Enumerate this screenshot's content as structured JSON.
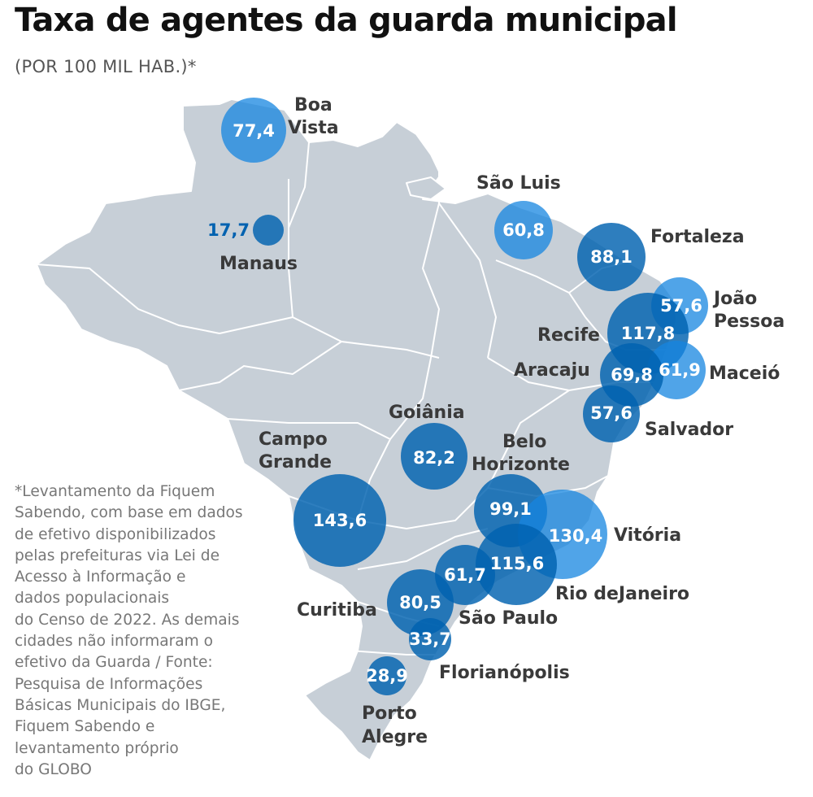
{
  "title": "Taxa de agentes da guarda municipal",
  "subtitle": "(POR 100 MIL HAB.)*",
  "note_lines": [
    "*Levantamento da Fiquem",
    "Sabendo, com base em dados",
    "de efetivo disponibilizados",
    "pelas prefeituras via Lei de",
    "Acesso à Informação e",
    "dados populacionais",
    "do Censo de 2022. As demais",
    "cidades não informaram o",
    "efetivo da Guarda / Fonte:",
    "Pesquisa de Informações",
    "Básicas Municipais do IBGE,",
    "Fiquem Sabendo e",
    "levantamento próprio",
    "do GLOBO"
  ],
  "colors": {
    "bubble": "#0062b0",
    "bubble_highlight": "#1686e0",
    "land": "#c7cfd7",
    "border": "#ffffff",
    "label": "#3a3a3a"
  },
  "cities": [
    {
      "id": "boa-vista",
      "name_lines": [
        "Boa",
        "Vista"
      ],
      "value": "77,4"
    },
    {
      "id": "manaus",
      "name_lines": [
        "Manaus"
      ],
      "value": "17,7"
    },
    {
      "id": "sao-luis",
      "name_lines": [
        "São Luis"
      ],
      "value": "60,8"
    },
    {
      "id": "fortaleza",
      "name_lines": [
        "Fortaleza"
      ],
      "value": "88,1"
    },
    {
      "id": "joao-pessoa",
      "name_lines": [
        "João",
        "Pessoa"
      ],
      "value": "57,6"
    },
    {
      "id": "recife",
      "name_lines": [
        "Recife"
      ],
      "value": "117,8"
    },
    {
      "id": "maceio",
      "name_lines": [
        "Maceió"
      ],
      "value": "61,9"
    },
    {
      "id": "aracaju",
      "name_lines": [
        "Aracaju"
      ],
      "value": "69,8"
    },
    {
      "id": "salvador",
      "name_lines": [
        "Salvador"
      ],
      "value": "57,6"
    },
    {
      "id": "goiania",
      "name_lines": [
        "Goiânia"
      ],
      "value": "82,2"
    },
    {
      "id": "belo-horizonte",
      "name_lines": [
        "Belo",
        "Horizonte"
      ],
      "value": "99,1"
    },
    {
      "id": "vitoria",
      "name_lines": [
        "Vitória"
      ],
      "value": "130,4"
    },
    {
      "id": "campo-grande",
      "name_lines": [
        "Campo",
        "Grande"
      ],
      "value": "143,6"
    },
    {
      "id": "rio-de-janeiro",
      "name_lines": [
        "Rio deJaneiro"
      ],
      "value": "115,6"
    },
    {
      "id": "sao-paulo",
      "name_lines": [
        "São Paulo"
      ],
      "value": "61,7"
    },
    {
      "id": "curitiba",
      "name_lines": [
        "Curitiba"
      ],
      "value": "80,5"
    },
    {
      "id": "florianopolis",
      "name_lines": [
        "Florianópolis"
      ],
      "value": "33,7"
    },
    {
      "id": "porto-alegre",
      "name_lines": [
        "Porto",
        "Alegre"
      ],
      "value": "28,9"
    }
  ]
}
